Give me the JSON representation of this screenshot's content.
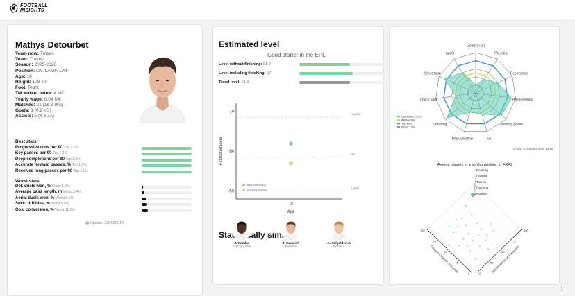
{
  "app": {
    "brand_line1": "FOOTBALL",
    "brand_line2": "INSIGHTS"
  },
  "player": {
    "name": "Mathys Detourbet",
    "rows": [
      {
        "k": "Team now:",
        "v": "Troyes"
      },
      {
        "k": "Team:",
        "v": "Troyes"
      },
      {
        "k": "Season:",
        "v": "2025-2026"
      },
      {
        "k": "Position:",
        "v": "LW, LAMF, LWF"
      },
      {
        "k": "Age:",
        "v": "18"
      },
      {
        "k": "Height:",
        "v": "178 cm"
      },
      {
        "k": "Foot:",
        "v": "Right"
      },
      {
        "k": "TM Market value:",
        "v": "4 M€"
      },
      {
        "k": "Yearly wage:",
        "v": "0.04 M€"
      },
      {
        "k": "Matches:",
        "v": "21 (16.8 90s)"
      },
      {
        "k": "Goals:",
        "v": "1 (0.2 xG)"
      },
      {
        "k": "Assists:",
        "v": "5 (4.6 xA)"
      }
    ]
  },
  "best_stats": {
    "title": "Best stats",
    "items": [
      {
        "label": "Progressive runs per 90",
        "rank": "Top 1.2%",
        "pct": 1.0
      },
      {
        "label": "Key passes per 90",
        "rank": "Top 1.3%",
        "pct": 1.0
      },
      {
        "label": "Deep completions per 90",
        "rank": "Top 1.5%",
        "pct": 1.0
      },
      {
        "label": "Accurate forward passes, %",
        "rank": "Top 1.9%",
        "pct": 1.0
      },
      {
        "label": "Received long passes per 90",
        "rank": "Top 2.1%",
        "pct": 1.0
      }
    ]
  },
  "worst_stats": {
    "title": "Worst stats",
    "items": [
      {
        "label": "Def. duels won, %",
        "rank": "Worst 1.2%",
        "pct": 0.03
      },
      {
        "label": "Average pass length, m",
        "rank": "Worst 3.4%",
        "pct": 0.05
      },
      {
        "label": "Aerial duels won, %",
        "rank": "Worst 5.1%",
        "pct": 0.08
      },
      {
        "label": "Succ. dribbles, %",
        "rank": "Worst 8.8%",
        "pct": 0.1
      },
      {
        "label": "Goal conversion, %",
        "rank": "Worst 11.2%",
        "pct": 0.12
      }
    ]
  },
  "updated": "Update: 2026/02/14",
  "estimated": {
    "title": "Estimated level",
    "subtitle": "Good starter in the EPL",
    "levels": [
      {
        "label": "Level without finishing:",
        "value": "61.9",
        "pct": 0.6,
        "color": "#7fd3a0"
      },
      {
        "label": "Level including finishing:",
        "value": "57",
        "pct": 0.63,
        "color": "#7fd3a0"
      },
      {
        "label": "Trend level:",
        "value": "61.9",
        "pct": 0.6,
        "color": "#999999"
      }
    ]
  },
  "chart_data": [
    {
      "type": "scatter",
      "xlabel": "Age",
      "ylabel": "Estimated level",
      "x_ticks": [
        "18"
      ],
      "y_ticks": [
        50,
        60,
        70
      ],
      "ylim": [
        48,
        72
      ],
      "ref_lines": [
        {
          "y": 68.5,
          "label": "Top 200"
        },
        {
          "y": 58.5,
          "label": "Ital."
        },
        {
          "y": 50,
          "label": "Ligue1"
        }
      ],
      "series": [
        {
          "name": "Without finishing",
          "color": "#7fd3a0",
          "points": [
            {
              "x": 18,
              "y": 61.9
            }
          ]
        },
        {
          "name": "Including finishing",
          "color": "#e6e05a",
          "points": [
            {
              "x": 18,
              "y": 57
            }
          ]
        }
      ]
    },
    {
      "type": "radar",
      "axes": [
        "Goals (n.p.)",
        "Pressing",
        "Recoveries",
        "Ball retention",
        "Building phase",
        "xA",
        "Pass creation",
        "Dribbling",
        "npxG/ shot",
        "Shots total",
        "npxG"
      ],
      "series": [
        {
          "name": "Detourbet 25/26",
          "color": "#5cc9b2",
          "values": [
            0.2,
            0.4,
            0.6,
            0.9,
            0.85,
            0.55,
            0.5,
            0.95,
            0.5,
            0.85,
            0.6
          ]
        },
        {
          "name": "AM Median",
          "color": "#d8e04c",
          "values": [
            0.5,
            0.5,
            0.5,
            0.5,
            0.5,
            0.5,
            0.5,
            0.5,
            0.5,
            0.5,
            0.5
          ]
        },
        {
          "name": "Top 10%",
          "color": "#3e8fd6",
          "values": [
            0.8,
            0.8,
            0.8,
            0.8,
            0.8,
            0.8,
            0.8,
            0.8,
            0.8,
            0.8,
            0.8
          ]
        },
        {
          "name": "Worst 10%",
          "color": "#999999",
          "values": [
            0.2,
            0.2,
            0.2,
            0.2,
            0.2,
            0.2,
            0.2,
            0.2,
            0.2,
            0.2,
            0.2
          ]
        }
      ],
      "footnote": "Among 10 leagues since 18/19"
    },
    {
      "type": "scatter",
      "title": "Among players in a similar position in FRA2",
      "xlabel": "Ball Progression Percentile",
      "ylabel": "Chance Creation Percentile",
      "x_ticks": [
        0,
        25,
        50,
        75,
        100
      ],
      "y_ticks": [
        0,
        25,
        50,
        75,
        100
      ],
      "labels": [
        "Boateng",
        "Daviduk",
        "Taureu",
        "Cardona",
        "Detourbet"
      ]
    }
  ],
  "similar": {
    "title": "Statistically similar:",
    "players": [
      {
        "name": "J. Kamba",
        "club": "Chicago Fire"
      },
      {
        "name": "J. Grealish",
        "club": "Everton"
      },
      {
        "name": "A. Schjelderup",
        "club": "Benfica"
      }
    ]
  }
}
